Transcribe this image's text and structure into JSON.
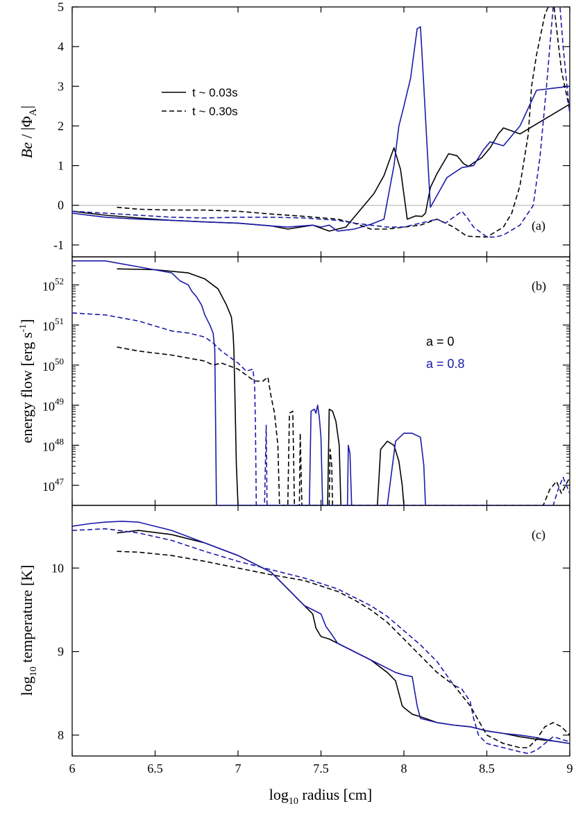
{
  "colors": {
    "black": "#000000",
    "blue": "#1a1aaa",
    "zero_line": "#c8c8c8"
  },
  "x_axis": {
    "label_main": "log",
    "label_sub": "10",
    "label_rest": " radius [cm]",
    "ticks": [
      6,
      6.5,
      7,
      7.5,
      8,
      8.5,
      9
    ],
    "tick_labels": [
      "6",
      "6.5",
      "7",
      "7.5",
      "8",
      "8.5",
      "9"
    ],
    "range": [
      6,
      9
    ]
  },
  "legend": {
    "solid_label": "t ~ 0.03s",
    "dashed_label": "t ~ 0.30s",
    "spin_black": "a = 0",
    "spin_blue": "a = 0.8"
  },
  "chart_data": [
    {
      "type": "line",
      "panel_tag": "(a)",
      "ylabel_parts": [
        "Be",
        " / |Φ",
        "A",
        "|"
      ],
      "ylim": [
        -1.3,
        5
      ],
      "yticks": [
        -1,
        0,
        1,
        2,
        3,
        4,
        5
      ],
      "ytick_labels": [
        "-1",
        "0",
        "1",
        "2",
        "3",
        "4",
        "5"
      ],
      "reference_line": 0,
      "series": [
        {
          "spin": "a = 0",
          "time": "t ~ 0.03s",
          "color": "black",
          "dash": false,
          "x": [
            6.0,
            6.2,
            6.4,
            6.6,
            6.8,
            7.0,
            7.2,
            7.3,
            7.45,
            7.55,
            7.65,
            7.75,
            7.82,
            7.88,
            7.94,
            7.98,
            8.02,
            8.07,
            8.11,
            8.13,
            8.16,
            8.2,
            8.27,
            8.32,
            8.36,
            8.39,
            8.43,
            8.47,
            8.52,
            8.57,
            8.6,
            8.7,
            8.8,
            8.9,
            9.0
          ],
          "y": [
            -0.15,
            -0.25,
            -0.32,
            -0.38,
            -0.42,
            -0.45,
            -0.52,
            -0.6,
            -0.5,
            -0.65,
            -0.55,
            -0.05,
            0.3,
            0.75,
            1.45,
            0.9,
            -0.35,
            -0.27,
            -0.28,
            -0.2,
            0.45,
            0.8,
            1.3,
            1.25,
            1.05,
            0.98,
            1.1,
            1.2,
            1.45,
            1.8,
            1.95,
            1.8,
            2.05,
            2.3,
            2.55
          ]
        },
        {
          "spin": "a = 0.8",
          "time": "t ~ 0.03s",
          "color": "blue",
          "dash": false,
          "x": [
            6.0,
            6.2,
            6.4,
            6.6,
            6.8,
            7.0,
            7.2,
            7.3,
            7.45,
            7.5,
            7.55,
            7.6,
            7.7,
            7.8,
            7.88,
            7.94,
            7.97,
            8.0,
            8.04,
            8.08,
            8.1,
            8.12,
            8.16,
            8.2,
            8.26,
            8.35,
            8.42,
            8.48,
            8.52,
            8.6,
            8.7,
            8.8,
            8.9,
            9.0
          ],
          "y": [
            -0.2,
            -0.3,
            -0.35,
            -0.38,
            -0.42,
            -0.45,
            -0.52,
            -0.55,
            -0.5,
            -0.55,
            -0.5,
            -0.65,
            -0.6,
            -0.48,
            -0.35,
            1.0,
            2.0,
            2.5,
            3.2,
            4.45,
            4.5,
            3.0,
            -0.05,
            0.25,
            0.7,
            0.95,
            1.0,
            1.4,
            1.6,
            1.5,
            2.0,
            2.9,
            2.95,
            3.0
          ]
        },
        {
          "spin": "a = 0",
          "time": "t ~ 0.30s",
          "color": "black",
          "dash": true,
          "x": [
            6.27,
            6.4,
            6.6,
            6.8,
            7.0,
            7.2,
            7.4,
            7.6,
            7.7,
            7.8,
            7.9,
            8.0,
            8.1,
            8.2,
            8.3,
            8.38,
            8.5,
            8.6,
            8.65,
            8.7,
            8.75,
            8.77,
            8.8,
            8.85,
            8.88,
            8.9,
            8.95,
            9.0
          ],
          "y": [
            -0.05,
            -0.1,
            -0.12,
            -0.12,
            -0.15,
            -0.22,
            -0.28,
            -0.35,
            -0.45,
            -0.6,
            -0.6,
            -0.55,
            -0.5,
            -0.35,
            -0.55,
            -0.78,
            -0.8,
            -0.55,
            -0.2,
            0.5,
            1.8,
            3.0,
            3.8,
            4.8,
            5.1,
            5.2,
            3.4,
            2.4
          ]
        },
        {
          "spin": "a = 0.8",
          "time": "t ~ 0.30s",
          "color": "blue",
          "dash": true,
          "x": [
            6.0,
            6.2,
            6.4,
            6.6,
            6.8,
            7.0,
            7.2,
            7.4,
            7.6,
            7.7,
            7.8,
            7.9,
            8.0,
            8.1,
            8.2,
            8.25,
            8.3,
            8.35,
            8.38,
            8.42,
            8.5,
            8.55,
            8.6,
            8.7,
            8.78,
            8.82,
            8.86,
            8.9,
            8.93,
            8.96,
            9.0
          ],
          "y": [
            -0.15,
            -0.2,
            -0.25,
            -0.3,
            -0.32,
            -0.3,
            -0.3,
            -0.32,
            -0.38,
            -0.45,
            -0.5,
            -0.55,
            -0.55,
            -0.45,
            -0.35,
            -0.45,
            -0.3,
            -0.15,
            -0.3,
            -0.55,
            -0.8,
            -0.8,
            -0.75,
            -0.5,
            0.0,
            1.2,
            3.0,
            5.0,
            5.6,
            4.0,
            2.3
          ]
        }
      ]
    },
    {
      "type": "line",
      "panel_tag": "(b)",
      "ylabel_main": "energy flow [erg s",
      "ylabel_sup": "-1",
      "ylabel_end": "]",
      "yscale": "log",
      "ylim_log10": [
        46.5,
        52.7
      ],
      "ytick_exponents": [
        47,
        48,
        49,
        50,
        51,
        52
      ],
      "ytick_base": "10",
      "series": [
        {
          "spin": "a = 0",
          "time": "t ~ 0.03s",
          "color": "black",
          "dash": false,
          "x": [
            6.27,
            6.5,
            6.7,
            6.8,
            6.88,
            6.93,
            6.96,
            6.97,
            6.975,
            6.98,
            6.99,
            7.0,
            7.54,
            7.55,
            7.57,
            7.59,
            7.61,
            7.62,
            7.84,
            7.86,
            7.9,
            7.94,
            7.97,
            7.99,
            8.0
          ],
          "y": [
            52.4,
            52.38,
            52.3,
            52.15,
            51.9,
            51.5,
            51.2,
            50.8,
            50.4,
            49.5,
            47.5,
            46.5,
            46.5,
            48.9,
            48.85,
            48.6,
            48.0,
            46.5,
            46.5,
            47.9,
            48.1,
            48.0,
            47.6,
            47.0,
            46.5
          ]
        },
        {
          "spin": "a = 0.8",
          "time": "t ~ 0.03s",
          "color": "blue",
          "dash": false,
          "x": [
            6.0,
            6.2,
            6.4,
            6.6,
            6.65,
            6.7,
            6.72,
            6.75,
            6.78,
            6.8,
            6.83,
            6.85,
            6.86,
            6.865,
            6.87,
            7.43,
            7.44,
            7.46,
            7.47,
            7.48,
            7.49,
            7.5,
            7.51,
            7.66,
            7.665,
            7.675,
            7.685,
            7.9,
            7.95,
            8.0,
            8.05,
            8.1,
            8.12,
            8.13
          ],
          "y": [
            52.6,
            52.6,
            52.45,
            52.3,
            52.1,
            52.0,
            51.85,
            51.7,
            51.5,
            51.25,
            51.0,
            50.8,
            50.4,
            48.5,
            46.5,
            46.5,
            48.85,
            48.9,
            48.8,
            49.0,
            48.7,
            48.2,
            46.5,
            46.5,
            48.0,
            47.8,
            46.5,
            46.5,
            48.1,
            48.3,
            48.3,
            48.2,
            47.5,
            46.5
          ]
        },
        {
          "spin": "a = 0",
          "time": "t ~ 0.30s",
          "color": "black",
          "dash": true,
          "x": [
            6.27,
            6.4,
            6.6,
            6.8,
            6.85,
            6.9,
            7.0,
            7.1,
            7.15,
            7.18,
            7.2,
            7.22,
            7.24,
            7.25,
            7.3,
            7.31,
            7.33,
            7.34,
            7.37,
            7.375,
            7.385,
            7.55,
            7.555,
            7.565,
            7.57,
            8.84,
            8.88,
            8.92,
            8.95,
            9.0
          ],
          "y": [
            50.45,
            50.35,
            50.25,
            50.1,
            50.0,
            50.05,
            49.9,
            49.6,
            49.6,
            49.7,
            49.2,
            48.8,
            48.0,
            46.5,
            46.5,
            48.8,
            48.85,
            46.5,
            46.5,
            48.3,
            46.5,
            46.5,
            47.9,
            47.5,
            46.5,
            46.5,
            46.9,
            47.1,
            46.8,
            47.2
          ]
        },
        {
          "spin": "a = 0.8",
          "time": "t ~ 0.30s",
          "color": "blue",
          "dash": true,
          "x": [
            6.0,
            6.2,
            6.4,
            6.6,
            6.7,
            6.8,
            6.85,
            6.9,
            6.95,
            7.0,
            7.05,
            7.09,
            7.1,
            7.105,
            7.11,
            7.12,
            7.14,
            7.16,
            7.17,
            7.175,
            7.18,
            7.185,
            8.9,
            8.93,
            8.96,
            9.0
          ],
          "y": [
            51.3,
            51.25,
            51.1,
            50.85,
            50.8,
            50.7,
            50.55,
            50.35,
            50.2,
            50.05,
            49.85,
            49.9,
            49.5,
            48.5,
            46.5,
            46.5,
            46.5,
            46.5,
            48.5,
            46.5,
            46.5,
            46.5,
            46.5,
            46.9,
            47.2,
            46.8
          ]
        }
      ]
    },
    {
      "type": "line",
      "panel_tag": "(c)",
      "ylabel_main": "log",
      "ylabel_sub": "10",
      "ylabel_rest": " temperature [K]",
      "ylim": [
        7.75,
        10.75
      ],
      "yticks": [
        8,
        9,
        10
      ],
      "ytick_labels": [
        "8",
        "9",
        "10"
      ],
      "series": [
        {
          "spin": "a = 0",
          "time": "t ~ 0.03s",
          "color": "black",
          "dash": false,
          "x": [
            6.27,
            6.4,
            6.6,
            6.8,
            7.0,
            7.2,
            7.3,
            7.4,
            7.45,
            7.47,
            7.5,
            7.55,
            7.6,
            7.7,
            7.8,
            7.9,
            7.95,
            7.97,
            7.99,
            8.0,
            8.05,
            8.1,
            8.2,
            8.3,
            8.4,
            8.5,
            8.6,
            8.7,
            8.8,
            8.9,
            9.0
          ],
          "y": [
            10.42,
            10.45,
            10.4,
            10.3,
            10.15,
            9.95,
            9.75,
            9.55,
            9.45,
            9.28,
            9.18,
            9.15,
            9.1,
            9.0,
            8.9,
            8.75,
            8.65,
            8.5,
            8.35,
            8.33,
            8.25,
            8.22,
            8.15,
            8.12,
            8.1,
            8.05,
            8.02,
            7.98,
            7.95,
            7.93,
            7.9
          ]
        },
        {
          "spin": "a = 0.8",
          "time": "t ~ 0.03s",
          "color": "blue",
          "dash": false,
          "x": [
            6.0,
            6.1,
            6.2,
            6.3,
            6.4,
            6.5,
            6.6,
            6.8,
            7.0,
            7.2,
            7.3,
            7.4,
            7.5,
            7.53,
            7.56,
            7.6,
            7.7,
            7.8,
            7.9,
            7.95,
            8.0,
            8.05,
            8.08,
            8.1,
            8.2,
            8.3,
            8.4,
            8.5,
            8.6,
            8.7,
            8.8,
            8.9,
            9.0
          ],
          "y": [
            10.5,
            10.53,
            10.55,
            10.56,
            10.55,
            10.5,
            10.45,
            10.3,
            10.15,
            9.95,
            9.75,
            9.55,
            9.45,
            9.3,
            9.22,
            9.1,
            9.0,
            8.9,
            8.8,
            8.75,
            8.72,
            8.7,
            8.35,
            8.2,
            8.15,
            8.12,
            8.1,
            8.05,
            8.02,
            8.0,
            7.97,
            7.93,
            7.9
          ]
        },
        {
          "spin": "a = 0",
          "time": "t ~ 0.30s",
          "color": "black",
          "dash": true,
          "x": [
            6.27,
            6.4,
            6.6,
            6.8,
            7.0,
            7.2,
            7.4,
            7.6,
            7.7,
            7.8,
            7.9,
            8.0,
            8.1,
            8.2,
            8.3,
            8.4,
            8.5,
            8.6,
            8.7,
            8.75,
            8.8,
            8.85,
            8.9,
            8.95,
            9.0
          ],
          "y": [
            10.2,
            10.19,
            10.15,
            10.08,
            10.0,
            9.92,
            9.85,
            9.72,
            9.62,
            9.5,
            9.35,
            9.15,
            8.95,
            8.75,
            8.6,
            8.35,
            8.0,
            7.9,
            7.85,
            7.85,
            7.95,
            8.1,
            8.15,
            8.1,
            8.0
          ]
        },
        {
          "spin": "a = 0.8",
          "time": "t ~ 0.30s",
          "color": "blue",
          "dash": true,
          "x": [
            6.0,
            6.2,
            6.4,
            6.6,
            6.8,
            7.0,
            7.2,
            7.4,
            7.6,
            7.8,
            7.9,
            8.0,
            8.1,
            8.2,
            8.3,
            8.35,
            8.4,
            8.42,
            8.45,
            8.5,
            8.6,
            8.7,
            8.75,
            8.8,
            8.85,
            8.9,
            9.0
          ],
          "y": [
            10.45,
            10.47,
            10.42,
            10.33,
            10.2,
            10.08,
            9.98,
            9.88,
            9.75,
            9.55,
            9.42,
            9.25,
            9.08,
            8.88,
            8.6,
            8.55,
            8.4,
            8.2,
            8.0,
            7.9,
            7.85,
            7.8,
            7.78,
            7.82,
            7.9,
            7.98,
            7.92
          ]
        }
      ]
    }
  ]
}
